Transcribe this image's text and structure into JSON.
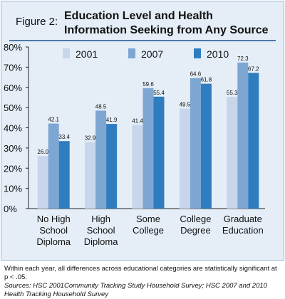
{
  "figure": {
    "label": "Figure 2:",
    "title": "Education Level and Health Information Seeking from Any Source"
  },
  "footnote": {
    "note": "Within each year, all differences across educational categories are statistically significant at p < .05.",
    "sources": "Sources: HSC 2001Community Tracking Study Household Survey; HSC 2007 and 2010 Health Tracking Household Survey"
  },
  "chart_data": {
    "type": "bar",
    "categories": [
      [
        "No High",
        "School",
        "Diploma"
      ],
      [
        "High",
        "School",
        "Diploma"
      ],
      [
        "Some",
        "College"
      ],
      [
        "College",
        "Degree"
      ],
      [
        "Graduate",
        "Education"
      ]
    ],
    "series": [
      {
        "name": "2001",
        "color": "#c7d6ea",
        "values": [
          26.0,
          32.9,
          41.4,
          49.5,
          55.3
        ]
      },
      {
        "name": "2007",
        "color": "#7ea6d3",
        "values": [
          42.1,
          48.5,
          59.6,
          64.6,
          72.3
        ]
      },
      {
        "name": "2010",
        "color": "#2f7dbf",
        "values": [
          33.4,
          41.9,
          55.4,
          61.8,
          67.2
        ]
      }
    ],
    "ylim": [
      0,
      80
    ],
    "yticks": [
      "0%",
      "10%",
      "20%",
      "30%",
      "40%",
      "50%",
      "60%",
      "70%",
      "80%"
    ],
    "grid": false,
    "legend_position": "top"
  }
}
